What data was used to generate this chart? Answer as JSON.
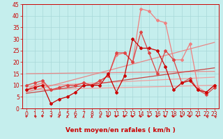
{
  "xlabel": "Vent moyen/en rafales ( km/h )",
  "xlim": [
    -0.5,
    23.5
  ],
  "ylim": [
    0,
    45
  ],
  "yticks": [
    0,
    5,
    10,
    15,
    20,
    25,
    30,
    35,
    40,
    45
  ],
  "xticks": [
    0,
    1,
    2,
    3,
    4,
    5,
    6,
    7,
    8,
    9,
    10,
    11,
    12,
    13,
    14,
    15,
    16,
    17,
    18,
    19,
    20,
    21,
    22,
    23
  ],
  "bg_color": "#c5eeed",
  "grid_color": "#a8d8d8",
  "series": [
    {
      "x": [
        0,
        23
      ],
      "y": [
        8.0,
        10.0
      ],
      "color": "#f0a0a0",
      "lw": 0.9,
      "marker": null,
      "ms": 0
    },
    {
      "x": [
        0,
        23
      ],
      "y": [
        9.5,
        13.5
      ],
      "color": "#f0a0a0",
      "lw": 0.9,
      "marker": null,
      "ms": 0
    },
    {
      "x": [
        0,
        23
      ],
      "y": [
        15.0,
        16.0
      ],
      "color": "#e88888",
      "lw": 0.9,
      "marker": null,
      "ms": 0
    },
    {
      "x": [
        0,
        23
      ],
      "y": [
        7.0,
        28.5
      ],
      "color": "#e88888",
      "lw": 0.9,
      "marker": null,
      "ms": 0
    },
    {
      "x": [
        0,
        23
      ],
      "y": [
        6.5,
        17.5
      ],
      "color": "#cc4444",
      "lw": 0.9,
      "marker": null,
      "ms": 0
    },
    {
      "x": [
        0,
        1,
        2,
        3,
        4,
        5,
        6,
        7,
        8,
        9,
        10,
        11,
        12,
        13,
        14,
        15,
        16,
        17,
        18,
        19,
        20,
        21,
        22,
        23
      ],
      "y": [
        8,
        10,
        11,
        8,
        9,
        10,
        10,
        11,
        10,
        12,
        14,
        23,
        24,
        20,
        43,
        42,
        38,
        37,
        21,
        21,
        28,
        9,
        7,
        10
      ],
      "color": "#f08080",
      "lw": 0.9,
      "marker": "D",
      "ms": 2.0
    },
    {
      "x": [
        0,
        1,
        2,
        3,
        4,
        5,
        6,
        7,
        8,
        9,
        10,
        11,
        12,
        13,
        14,
        15,
        16,
        17,
        18,
        19,
        20,
        21,
        22,
        23
      ],
      "y": [
        10,
        11,
        12,
        8,
        9,
        10,
        10,
        11,
        10,
        12,
        14,
        24,
        24,
        20,
        33,
        24,
        15,
        25,
        21,
        11,
        13,
        8,
        6,
        9
      ],
      "color": "#dd4444",
      "lw": 0.9,
      "marker": "D",
      "ms": 2.0
    },
    {
      "x": [
        0,
        1,
        2,
        3,
        4,
        5,
        6,
        7,
        8,
        9,
        10,
        11,
        12,
        13,
        14,
        15,
        16,
        17,
        18,
        19,
        20,
        21,
        22,
        23
      ],
      "y": [
        8,
        9,
        10,
        2,
        4,
        5,
        7,
        10,
        10,
        10,
        15,
        7,
        14,
        30,
        26,
        26,
        25,
        18,
        8,
        11,
        12,
        8,
        7,
        10
      ],
      "color": "#cc0000",
      "lw": 0.9,
      "marker": "D",
      "ms": 2.0
    }
  ],
  "wind_angles": [
    200,
    220,
    210,
    155,
    170,
    180,
    180,
    175,
    180,
    185,
    90,
    90,
    95,
    90,
    90,
    90,
    90,
    80,
    75,
    80,
    85,
    210,
    215,
    215
  ],
  "tick_fontsize": 5.5,
  "axis_fontsize": 6.5
}
